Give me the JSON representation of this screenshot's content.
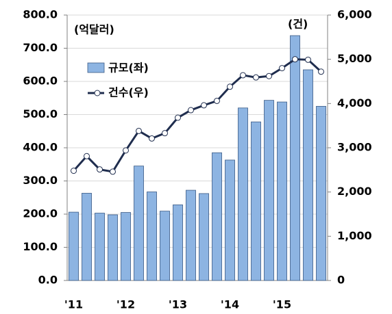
{
  "chart_data": {
    "type": "bar_line",
    "annotations": [
      "(억달러)",
      "(건)"
    ],
    "categories": [
      "'11",
      null,
      null,
      null,
      "'12",
      null,
      null,
      null,
      "'13",
      null,
      null,
      null,
      "'14",
      null,
      null,
      null,
      "'15",
      null,
      null,
      null
    ],
    "series": [
      {
        "name": "규모(좌)",
        "color": "#8db4e2",
        "type": "bar",
        "axis": "y",
        "values": [
          206,
          263,
          203,
          198,
          205,
          345,
          267,
          209,
          228,
          272,
          262,
          385,
          363,
          520,
          478,
          543,
          538,
          738,
          635,
          525
        ]
      },
      {
        "name": "건수(우)",
        "color": "#1f2d4e",
        "type": "line",
        "axis": "y2",
        "values": [
          2480,
          2810,
          2510,
          2460,
          2940,
          3380,
          3210,
          3330,
          3680,
          3850,
          3960,
          4060,
          4380,
          4640,
          4590,
          4620,
          4800,
          5000,
          4990,
          4720
        ]
      }
    ],
    "ylim": [
      0,
      800
    ],
    "yticks": [
      {
        "value": 0,
        "label": "0.0"
      },
      {
        "value": 100,
        "label": "100.0"
      },
      {
        "value": 200,
        "label": "200.0"
      },
      {
        "value": 300,
        "label": "300.0"
      },
      {
        "value": 400,
        "label": "400.0"
      },
      {
        "value": 500,
        "label": "500.0"
      },
      {
        "value": 600,
        "label": "600.0"
      },
      {
        "value": 700,
        "label": "700.0"
      },
      {
        "value": 800,
        "label": "800.0"
      }
    ],
    "y2lim": [
      0,
      6000
    ],
    "y2ticks": [
      0,
      {
        "value": 1000,
        "label": "1,000"
      },
      {
        "value": 2000,
        "label": "2,000"
      },
      {
        "value": 3000,
        "label": "3,000"
      },
      {
        "value": 4000,
        "label": "4,000"
      },
      {
        "value": 5000,
        "label": "5,000"
      },
      {
        "value": 6000,
        "label": "6,000"
      }
    ],
    "grid": true
  }
}
